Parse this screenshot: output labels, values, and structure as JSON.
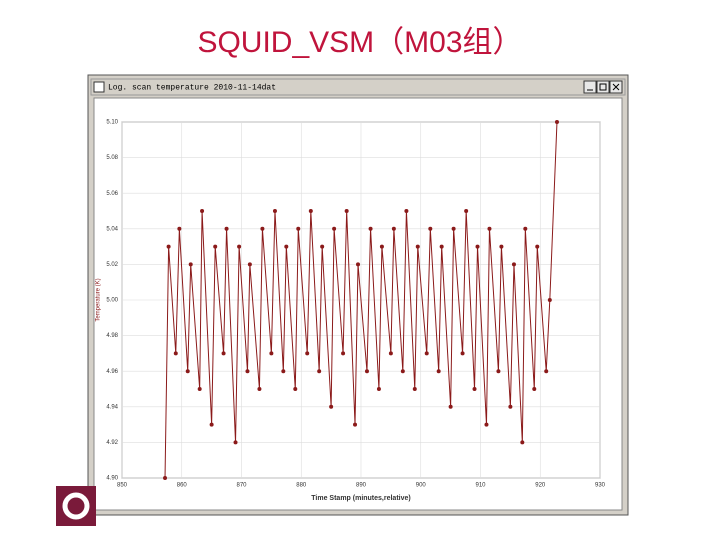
{
  "slide_title": "SQUID_VSM（M03组）",
  "window_title": "Log. scan temperature 2010-11-14dat",
  "chart_data": {
    "type": "line",
    "x_label": "Time Stamp (minutes,relative)",
    "y_label": "Temperature (K)",
    "xlim": [
      850,
      930
    ],
    "xticks": [
      850,
      860,
      870,
      880,
      890,
      900,
      910,
      920,
      930
    ],
    "ylim": [
      4.9,
      5.1
    ],
    "yticks": [
      {
        "value": 4.9,
        "label": "4.90"
      },
      4.92,
      4.94,
      4.96,
      4.98,
      {
        "value": 5.0,
        "label": "5.00"
      },
      5.02,
      5.04,
      5.06,
      5.08,
      {
        "value": 5.1,
        "label": "5.10"
      }
    ],
    "grid": true,
    "series": [
      {
        "color": "#8b1a1a",
        "x": [
          857.2,
          857.8,
          859.0,
          859.6,
          861.0,
          861.5,
          863.0,
          863.4,
          865.0,
          865.6,
          867.0,
          867.5,
          869.0,
          869.6,
          871.0,
          871.4,
          873.0,
          873.5,
          875.0,
          875.6,
          877.0,
          877.5,
          879.0,
          879.5,
          881.0,
          881.6,
          883.0,
          883.5,
          885.0,
          885.5,
          887.0,
          887.6,
          889.0,
          889.5,
          891.0,
          891.6,
          893.0,
          893.5,
          895.0,
          895.5,
          897.0,
          897.6,
          899.0,
          899.5,
          901.0,
          901.6,
          903.0,
          903.5,
          905.0,
          905.5,
          907.0,
          907.6,
          909.0,
          909.5,
          911.0,
          911.5,
          913.0,
          913.5,
          915.0,
          915.6,
          917.0,
          917.5,
          919.0,
          919.5,
          921.0,
          921.6,
          922.8
        ],
        "values": [
          4.9,
          5.03,
          4.97,
          5.04,
          4.96,
          5.02,
          4.95,
          5.05,
          4.93,
          5.03,
          4.97,
          5.04,
          4.92,
          5.03,
          4.96,
          5.02,
          4.95,
          5.04,
          4.97,
          5.05,
          4.96,
          5.03,
          4.95,
          5.04,
          4.97,
          5.05,
          4.96,
          5.03,
          4.94,
          5.04,
          4.97,
          5.05,
          4.93,
          5.02,
          4.96,
          5.04,
          4.95,
          5.03,
          4.97,
          5.04,
          4.96,
          5.05,
          4.95,
          5.03,
          4.97,
          5.04,
          4.96,
          5.03,
          4.94,
          5.04,
          4.97,
          5.05,
          4.95,
          5.03,
          4.93,
          5.04,
          4.96,
          5.03,
          4.94,
          5.02,
          4.92,
          5.04,
          4.95,
          5.03,
          4.96,
          5.0,
          5.1
        ]
      }
    ]
  }
}
